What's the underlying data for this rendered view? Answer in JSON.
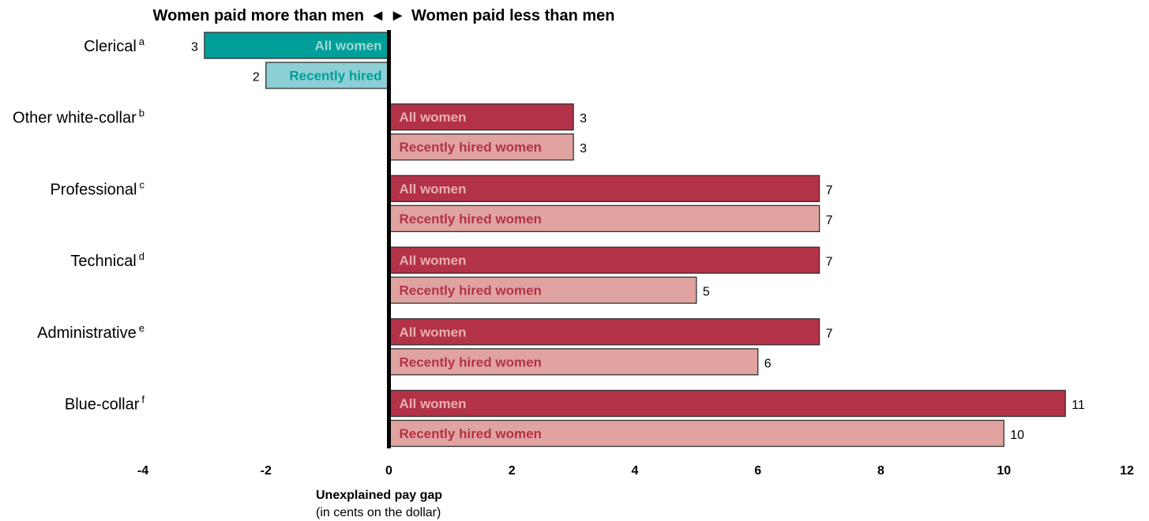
{
  "chart_data": {
    "type": "bar",
    "orientation": "horizontal",
    "header": {
      "left": "Women paid more than men",
      "arrows": "◄ ►",
      "right": "Women paid less than men"
    },
    "categories": [
      {
        "label": "Clerical",
        "sup": "a"
      },
      {
        "label": "Other white-collar",
        "sup": "b"
      },
      {
        "label": "Professional",
        "sup": "c"
      },
      {
        "label": "Technical",
        "sup": "d"
      },
      {
        "label": "Administrative",
        "sup": "e"
      },
      {
        "label": "Blue-collar",
        "sup": "f"
      }
    ],
    "series": [
      {
        "values": [
          -3,
          3,
          7,
          7,
          7,
          11
        ],
        "value_labels": [
          "3",
          "3",
          "7",
          "7",
          "7",
          "11"
        ],
        "bar_labels": [
          "All women",
          "All women",
          "All women",
          "All women",
          "All women",
          "All women"
        ]
      },
      {
        "values": [
          -2,
          3,
          7,
          5,
          6,
          10
        ],
        "value_labels": [
          "2",
          "3",
          "7",
          "5",
          "6",
          "10"
        ],
        "bar_labels": [
          "Recently hired",
          "Recently hired women",
          "Recently hired women",
          "Recently hired women",
          "Recently hired women",
          "Recently hired women"
        ]
      }
    ],
    "xlim": [
      -4,
      12
    ],
    "xticks": [
      -4,
      -2,
      0,
      2,
      4,
      6,
      8,
      10,
      12
    ],
    "tick_labels": [
      "-4",
      "-2",
      "0",
      "2",
      "4",
      "6",
      "8",
      "10",
      "12"
    ],
    "xlabel": "Unexplained pay gap",
    "xsublabel": "(in cents on the dollar)",
    "grid": false,
    "legend": "none",
    "colors": {
      "all_positive": "#b33247",
      "recent_positive": "#e0a39f",
      "all_negative": "#009e99",
      "recent_negative": "#8ccfd4",
      "all_positive_text": "#e8b0b0",
      "recent_positive_text": "#b33247",
      "all_negative_text": "#9edad6",
      "recent_negative_text": "#009e99",
      "border": "#333333",
      "axis": "#000000"
    }
  }
}
